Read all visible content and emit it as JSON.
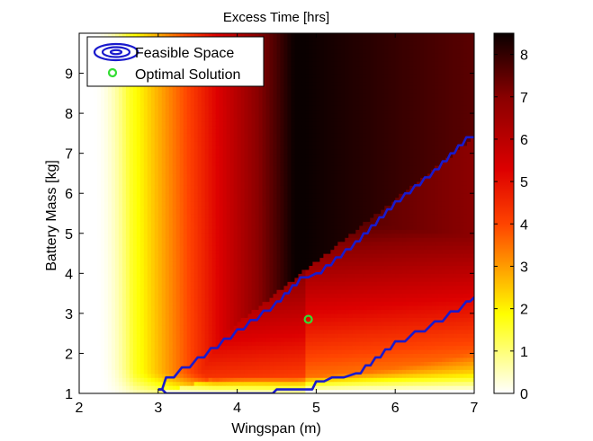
{
  "chart_data": {
    "type": "heatmap",
    "title": "Excess Time [hrs]",
    "xlabel": "Wingspan (m)",
    "ylabel": "Battery Mass [kg]",
    "xlim": [
      2,
      7
    ],
    "ylim": [
      1,
      10
    ],
    "xticks": [
      "2",
      "3",
      "4",
      "5",
      "6",
      "7"
    ],
    "yticks": [
      "1",
      "2",
      "3",
      "4",
      "5",
      "6",
      "7",
      "8",
      "9"
    ],
    "colorbar": {
      "colormap": "hot (reversed)",
      "range": [
        0,
        8.5
      ],
      "ticks": [
        "0",
        "1",
        "2",
        "3",
        "4",
        "5",
        "6",
        "7",
        "8"
      ]
    },
    "legend": {
      "placement": "top-left",
      "entries": [
        {
          "label": "Feasible Space",
          "marker": "contour",
          "color": "#1a1acc"
        },
        {
          "label": "Optimal Solution",
          "marker": "circle",
          "color": "#33dd33"
        }
      ]
    },
    "feasible_boundary": {
      "color": "#1a1acc",
      "upper": [
        [
          3.0,
          1.1
        ],
        [
          3.1,
          1.4
        ],
        [
          3.5,
          1.9
        ],
        [
          4.0,
          2.6
        ],
        [
          4.5,
          3.3
        ],
        [
          4.8,
          3.9
        ],
        [
          5.0,
          4.0
        ],
        [
          5.5,
          4.8
        ],
        [
          6.0,
          5.8
        ],
        [
          6.5,
          6.6
        ],
        [
          6.9,
          7.4
        ],
        [
          7.0,
          7.4
        ]
      ],
      "lower": [
        [
          3.0,
          1.1
        ],
        [
          3.1,
          1.0
        ],
        [
          4.4,
          1.0
        ],
        [
          4.5,
          1.1
        ],
        [
          4.9,
          1.1
        ],
        [
          5.0,
          1.3
        ],
        [
          5.2,
          1.4
        ],
        [
          5.5,
          1.5
        ],
        [
          6.0,
          2.3
        ],
        [
          6.5,
          2.8
        ],
        [
          6.9,
          3.3
        ],
        [
          7.0,
          3.4
        ]
      ]
    },
    "optimal_solution": {
      "x": 4.9,
      "y": 2.85,
      "color": "#33dd33"
    }
  }
}
